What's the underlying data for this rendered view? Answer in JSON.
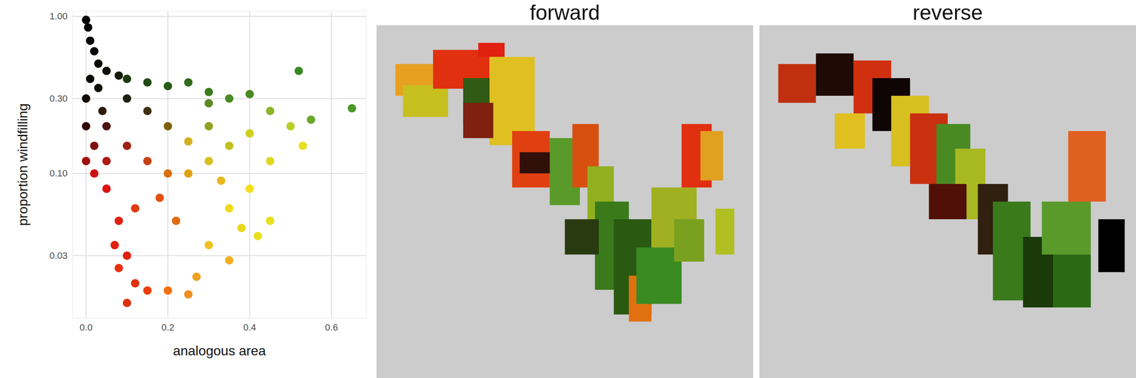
{
  "chart_data": [
    {
      "type": "scatter",
      "x_label": "analogous area",
      "y_label": "proportion windfilling",
      "log": "y",
      "grid": true,
      "xlim": [
        -0.033,
        0.685
      ],
      "ylim": [
        0.012,
        1.08
      ],
      "xticks": [
        {
          "value": 0,
          "label": "0.0"
        },
        0.2,
        0.4,
        0.6
      ],
      "yticks": [
        0.03,
        {
          "value": 0.1,
          "label": "0.10"
        },
        {
          "value": 0.3,
          "label": "0.30"
        },
        {
          "value": 1,
          "label": "1.00"
        }
      ],
      "x": [
        0.0,
        0.005,
        0.01,
        0.02,
        0.03,
        0.05,
        0.08,
        0.0,
        0.01,
        0.03,
        0.1,
        0.15,
        0.2,
        0.25,
        0.3,
        0.35,
        0.4,
        0.52,
        0.55,
        0.65,
        0.45,
        0.5,
        0.53,
        0.45,
        0.4,
        0.35,
        0.45,
        0.42,
        0.38,
        0.3,
        0.35,
        0.27,
        0.25,
        0.2,
        0.02,
        0.05,
        0.08,
        0.1,
        0.08,
        0.12,
        0.15,
        0.1,
        0.07,
        0.1,
        0.15,
        0.2,
        0.25,
        0.3,
        0.2,
        0.3,
        0.35,
        0.15,
        0.05,
        0.02,
        0.1,
        0.0,
        0.05,
        0.25,
        0.4,
        0.3,
        0.18,
        0.12,
        0.22,
        0.33,
        0.0,
        0.04
      ],
      "y": [
        0.95,
        0.85,
        0.7,
        0.6,
        0.5,
        0.45,
        0.42,
        0.3,
        0.4,
        0.35,
        0.4,
        0.38,
        0.36,
        0.38,
        0.33,
        0.3,
        0.32,
        0.45,
        0.22,
        0.26,
        0.25,
        0.2,
        0.15,
        0.12,
        0.08,
        0.06,
        0.05,
        0.04,
        0.045,
        0.035,
        0.028,
        0.022,
        0.017,
        0.018,
        0.1,
        0.08,
        0.05,
        0.03,
        0.025,
        0.02,
        0.018,
        0.015,
        0.035,
        0.15,
        0.12,
        0.1,
        0.1,
        0.12,
        0.2,
        0.2,
        0.15,
        0.25,
        0.2,
        0.15,
        0.3,
        0.2,
        0.12,
        0.16,
        0.18,
        0.28,
        0.07,
        0.06,
        0.05,
        0.09,
        0.12,
        0.25
      ],
      "colors": [
        "#000000",
        "#000000",
        "#050505",
        "#080808",
        "#0a0a05",
        "#101008",
        "#151a08",
        "#100a05",
        "#0a0a05",
        "#0f0f05",
        "#1a3a10",
        "#204a12",
        "#285a15",
        "#2e6b1a",
        "#3a7d1e",
        "#4a8a22",
        "#4a8a22",
        "#3a8a22",
        "#6aa82a",
        "#4a9a2a",
        "#8ab52a",
        "#b8cf2a",
        "#e8e020",
        "#e0d820",
        "#f0e020",
        "#f0d820",
        "#e8e020",
        "#e8e020",
        "#ead820",
        "#f0c020",
        "#f0b020",
        "#f0a020",
        "#f09020",
        "#f07010",
        "#d01010",
        "#e01010",
        "#e02010",
        "#e02010",
        "#e83010",
        "#e03010",
        "#ea4010",
        "#e03010",
        "#e02010",
        "#a02010",
        "#c84010",
        "#d87010",
        "#e0a010",
        "#d8c020",
        "#806010",
        "#90a020",
        "#c0c020",
        "#403010",
        "#501010",
        "#801010",
        "#202010",
        "#300808",
        "#b01810",
        "#d0b020",
        "#d0d020",
        "#5a8a20",
        "#e05010",
        "#e03a10",
        "#e06a10",
        "#e8b820",
        "#a01010",
        "#301a08"
      ]
    },
    {
      "type": "map",
      "title": "forward",
      "cells": [
        {
          "x1": 5,
          "x2": 15,
          "y1": 11,
          "y2": 20,
          "color": "#e8a020"
        },
        {
          "x1": 7,
          "x2": 19,
          "y1": 17,
          "y2": 26,
          "color": "#c8c020"
        },
        {
          "x1": 15,
          "x2": 30,
          "y1": 7,
          "y2": 18,
          "color": "#e03010"
        },
        {
          "x1": 23,
          "x2": 34,
          "y1": 15,
          "y2": 28,
          "color": "#305a15"
        },
        {
          "x1": 27,
          "x2": 34,
          "y1": 5,
          "y2": 9,
          "color": "#e02010"
        },
        {
          "x1": 30,
          "x2": 42,
          "y1": 9,
          "y2": 34,
          "color": "#e0c020"
        },
        {
          "x1": 36,
          "x2": 46,
          "y1": 30,
          "y2": 46,
          "color": "#e04010"
        },
        {
          "x1": 46,
          "x2": 54,
          "y1": 32,
          "y2": 51,
          "color": "#5a9a2a"
        },
        {
          "x1": 52,
          "x2": 59,
          "y1": 28,
          "y2": 46,
          "color": "#d85010"
        },
        {
          "x1": 56,
          "x2": 63,
          "y1": 40,
          "y2": 59,
          "color": "#90b020"
        },
        {
          "x1": 58,
          "x2": 67,
          "y1": 50,
          "y2": 75,
          "color": "#3a7a1a"
        },
        {
          "x1": 63,
          "x2": 73,
          "y1": 55,
          "y2": 82,
          "color": "#2a5a12"
        },
        {
          "x1": 67,
          "x2": 73,
          "y1": 71,
          "y2": 84,
          "color": "#e07010"
        },
        {
          "x1": 73,
          "x2": 85,
          "y1": 46,
          "y2": 67,
          "color": "#a0b020"
        },
        {
          "x1": 81,
          "x2": 89,
          "y1": 28,
          "y2": 46,
          "color": "#e03010"
        },
        {
          "x1": 86,
          "x2": 92,
          "y1": 30,
          "y2": 44,
          "color": "#e0a020"
        },
        {
          "x1": 69,
          "x2": 81,
          "y1": 63,
          "y2": 79,
          "color": "#3a8a22"
        },
        {
          "x1": 79,
          "x2": 87,
          "y1": 55,
          "y2": 67,
          "color": "#7aa020"
        },
        {
          "x1": 23,
          "x2": 31,
          "y1": 22,
          "y2": 32,
          "color": "#802010"
        },
        {
          "x1": 38,
          "x2": 46,
          "y1": 36,
          "y2": 42,
          "color": "#301008"
        },
        {
          "x1": 90,
          "x2": 95,
          "y1": 52,
          "y2": 65,
          "color": "#b0c020"
        },
        {
          "x1": 50,
          "x2": 59,
          "y1": 55,
          "y2": 65,
          "color": "#2a3a10"
        }
      ]
    },
    {
      "type": "map",
      "title": "reverse",
      "cells": [
        {
          "x1": 5,
          "x2": 15,
          "y1": 11,
          "y2": 22,
          "color": "#c03010"
        },
        {
          "x1": 15,
          "x2": 25,
          "y1": 8,
          "y2": 20,
          "color": "#200a05"
        },
        {
          "x1": 25,
          "x2": 35,
          "y1": 10,
          "y2": 25,
          "color": "#d03010"
        },
        {
          "x1": 30,
          "x2": 40,
          "y1": 15,
          "y2": 30,
          "color": "#100505"
        },
        {
          "x1": 35,
          "x2": 45,
          "y1": 20,
          "y2": 40,
          "color": "#d8c020"
        },
        {
          "x1": 40,
          "x2": 50,
          "y1": 25,
          "y2": 45,
          "color": "#c83010"
        },
        {
          "x1": 47,
          "x2": 56,
          "y1": 28,
          "y2": 50,
          "color": "#4a8a22"
        },
        {
          "x1": 52,
          "x2": 60,
          "y1": 35,
          "y2": 55,
          "color": "#a8b820"
        },
        {
          "x1": 58,
          "x2": 66,
          "y1": 45,
          "y2": 65,
          "color": "#302010"
        },
        {
          "x1": 62,
          "x2": 72,
          "y1": 50,
          "y2": 78,
          "color": "#3a7a1a"
        },
        {
          "x1": 70,
          "x2": 78,
          "y1": 60,
          "y2": 80,
          "color": "#1a3a0a"
        },
        {
          "x1": 75,
          "x2": 88,
          "y1": 50,
          "y2": 65,
          "color": "#5a9a2a"
        },
        {
          "x1": 82,
          "x2": 92,
          "y1": 30,
          "y2": 50,
          "color": "#e06020"
        },
        {
          "x1": 90,
          "x2": 97,
          "y1": 55,
          "y2": 70,
          "color": "#000000"
        },
        {
          "x1": 78,
          "x2": 88,
          "y1": 65,
          "y2": 80,
          "color": "#2a6a15"
        },
        {
          "x1": 20,
          "x2": 28,
          "y1": 25,
          "y2": 35,
          "color": "#e0c020"
        },
        {
          "x1": 45,
          "x2": 55,
          "y1": 45,
          "y2": 55,
          "color": "#501008"
        }
      ]
    }
  ]
}
